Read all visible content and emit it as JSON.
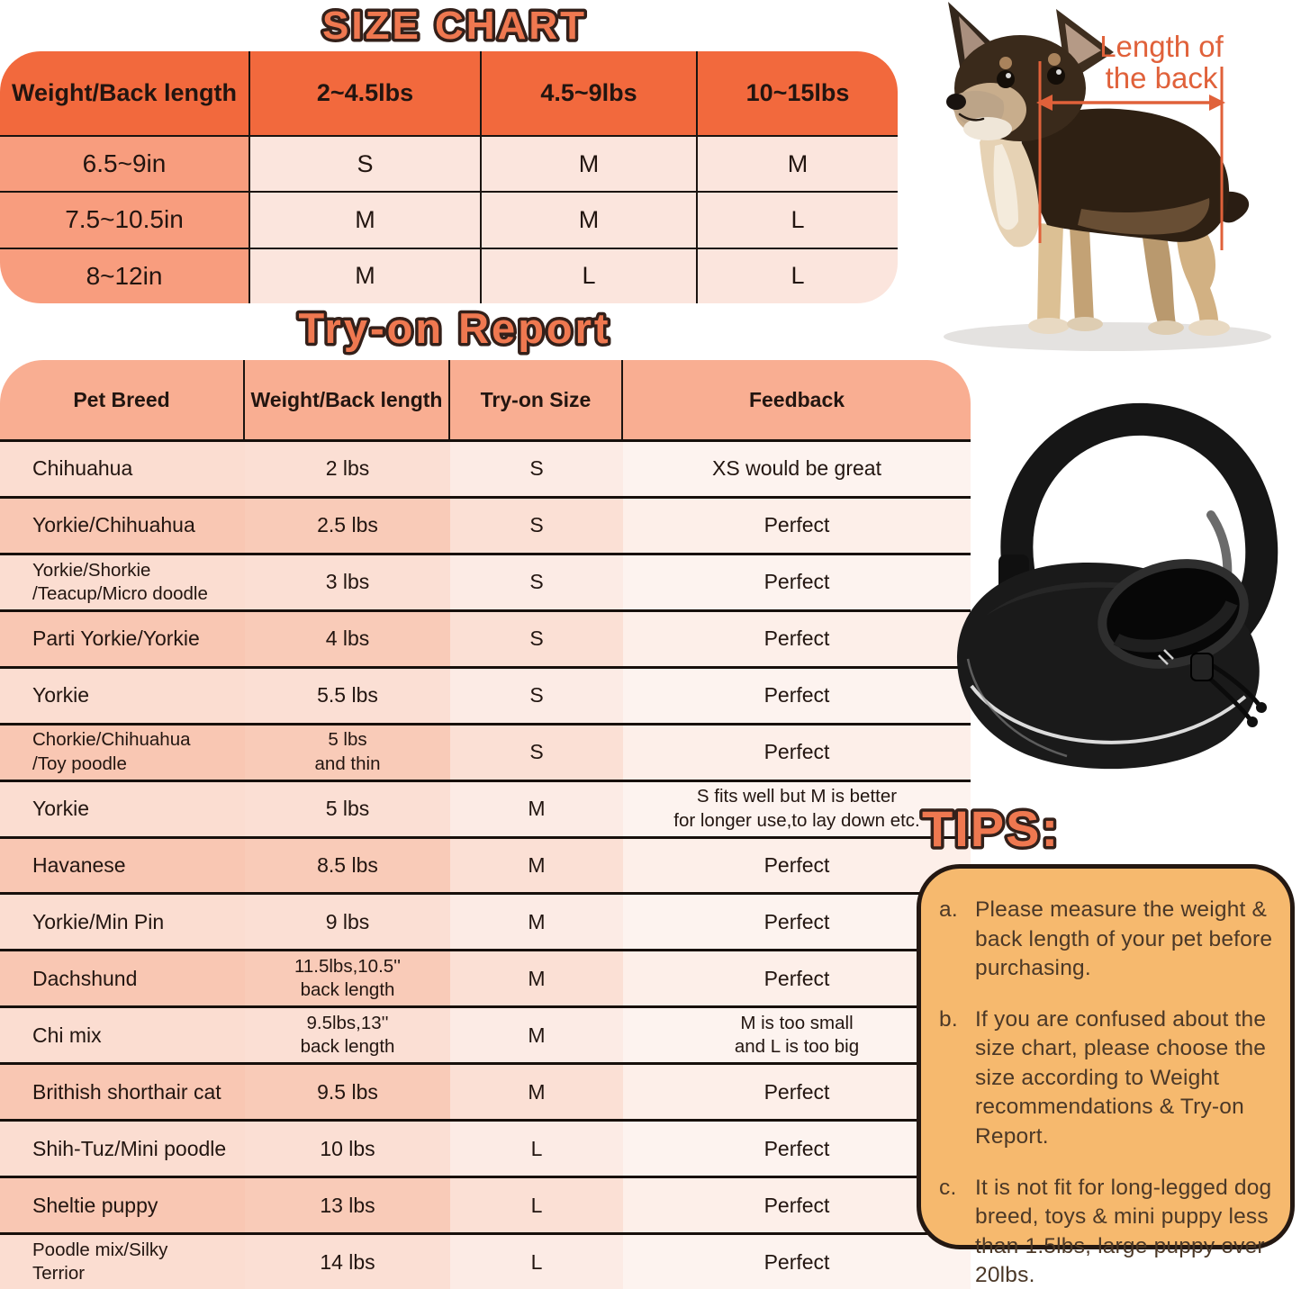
{
  "size_chart": {
    "title": "SIZE CHART",
    "columns": [
      "Weight/Back length",
      "2~4.5lbs",
      "4.5~9lbs",
      "10~15lbs"
    ],
    "rows": [
      {
        "label": "6.5~9in",
        "values": [
          "S",
          "M",
          "M"
        ]
      },
      {
        "label": "7.5~10.5in",
        "values": [
          "M",
          "M",
          "L"
        ]
      },
      {
        "label": "8~12in",
        "values": [
          "M",
          "L",
          "L"
        ]
      }
    ]
  },
  "tryon_report": {
    "title": "Try-on Report",
    "columns": [
      "Pet Breed",
      "Weight/Back length",
      "Try-on Size",
      "Feedback"
    ],
    "rows": [
      {
        "breed": "Chihuahua",
        "weight": "2 lbs",
        "size": "S",
        "feedback": "XS would be great"
      },
      {
        "breed": "Yorkie/Chihuahua",
        "weight": "2.5 lbs",
        "size": "S",
        "feedback": "Perfect"
      },
      {
        "breed": "Yorkie/Shorkie\n/Teacup/Micro doodle",
        "weight": "3 lbs",
        "size": "S",
        "feedback": "Perfect"
      },
      {
        "breed": "Parti Yorkie/Yorkie",
        "weight": "4 lbs",
        "size": "S",
        "feedback": "Perfect"
      },
      {
        "breed": "Yorkie",
        "weight": "5.5 lbs",
        "size": "S",
        "feedback": "Perfect"
      },
      {
        "breed": "Chorkie/Chihuahua\n/Toy poodle",
        "weight": "5 lbs\nand thin",
        "size": "S",
        "feedback": "Perfect"
      },
      {
        "breed": "Yorkie",
        "weight": "5 lbs",
        "size": "M",
        "feedback": "S fits well but M is better\nfor longer use,to lay down etc."
      },
      {
        "breed": "Havanese",
        "weight": "8.5 lbs",
        "size": "M",
        "feedback": "Perfect"
      },
      {
        "breed": "Yorkie/Min Pin",
        "weight": "9 lbs",
        "size": "M",
        "feedback": "Perfect"
      },
      {
        "breed": "Dachshund",
        "weight": "11.5lbs,10.5''\nback length",
        "size": "M",
        "feedback": "Perfect"
      },
      {
        "breed": "Chi mix",
        "weight": "9.5lbs,13''\nback length",
        "size": "M",
        "feedback": "M is too small\nand L is too big"
      },
      {
        "breed": "Brithish shorthair cat",
        "weight": "9.5 lbs",
        "size": "M",
        "feedback": "Perfect"
      },
      {
        "breed": "Shih-Tuz/Mini poodle",
        "weight": "10 lbs",
        "size": "L",
        "feedback": "Perfect"
      },
      {
        "breed": "Sheltie puppy",
        "weight": "13 lbs",
        "size": "L",
        "feedback": "Perfect"
      },
      {
        "breed": "Poodle mix/Silky\nTerrior",
        "weight": "14 lbs",
        "size": "L",
        "feedback": "Perfect"
      }
    ]
  },
  "dog_figure": {
    "annotation_line1": "Length of",
    "annotation_line2": "the back",
    "description": "chihuahua-photo-with-back-length-measurement"
  },
  "bag_figure": {
    "description": "black-mesh-pet-sling-carrier"
  },
  "tips": {
    "title": "TIPS:",
    "items": [
      {
        "label": "a.",
        "text": "Please measure the weight & back length of your pet before purchasing."
      },
      {
        "label": "b.",
        "text": "If you are confused about the size chart, please choose the size according to Weight recommendations & Try-on Report."
      },
      {
        "label": "c.",
        "text": "It is not fit for long-legged dog breed, toys & mini puppy less than 1.5lbs, large puppy over 20lbs."
      }
    ]
  },
  "colors": {
    "title_orange": "#EF7850",
    "title_outline": "#33201A",
    "size_header": "#F2693D",
    "size_label_col": "#F89D7E",
    "size_data_cell": "#FBE5DD",
    "tryon_header": "#F9AE92",
    "row_light_c0": "#FBDDD1",
    "row_dark_c0": "#F9C7B3",
    "annotation_orange": "#E0613A",
    "tips_box_bg": "#F6B96E",
    "tips_box_border": "#241812",
    "tips_text": "#4B3827",
    "table_line": "#1B1410"
  }
}
